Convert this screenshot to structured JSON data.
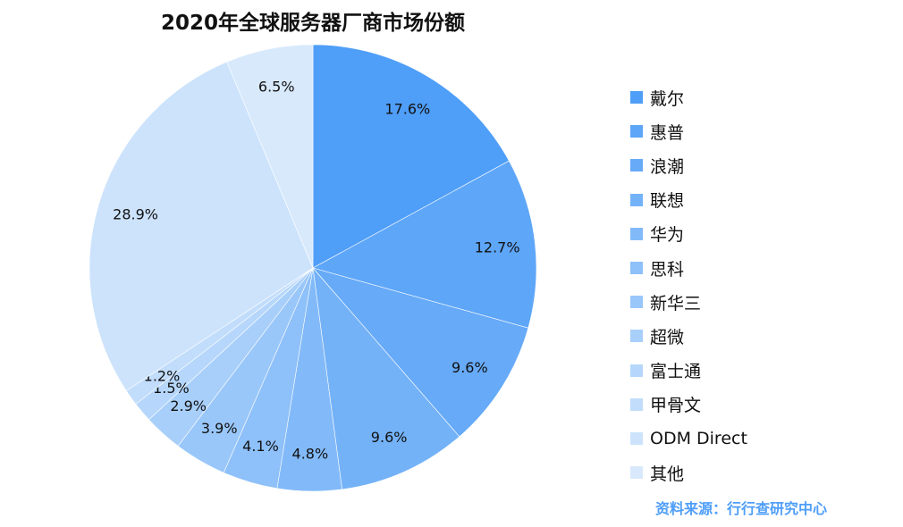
{
  "chart_data": {
    "type": "pie",
    "title": "2020年全球服务器厂商市场份额",
    "categories": [
      "戴尔",
      "惠普",
      "浪潮",
      "联想",
      "华为",
      "思科",
      "新华三",
      "超微",
      "富士通",
      "甲骨文",
      "ODM Direct",
      "其他"
    ],
    "values": [
      17.6,
      12.7,
      9.6,
      9.6,
      4.8,
      4.1,
      3.9,
      2.9,
      1.5,
      1.2,
      28.9,
      6.5
    ],
    "labels": [
      "17.6%",
      "12.7%",
      "9.6%",
      "9.6%",
      "4.8%",
      "4.1%",
      "3.9%",
      "2.9%",
      "1.5%",
      "1.2%",
      "28.9%",
      "6.5%"
    ],
    "colors": [
      "#4f9ef8",
      "#5ea6f8",
      "#66aaf8",
      "#74b2f8",
      "#82baf9",
      "#8ec0f9",
      "#9ac7fa",
      "#a8cffa",
      "#b6d7fb",
      "#c2ddfb",
      "#cde3fc",
      "#d8e9fc"
    ],
    "legend_position": "right"
  },
  "source": "资料来源：行行查研究中心"
}
